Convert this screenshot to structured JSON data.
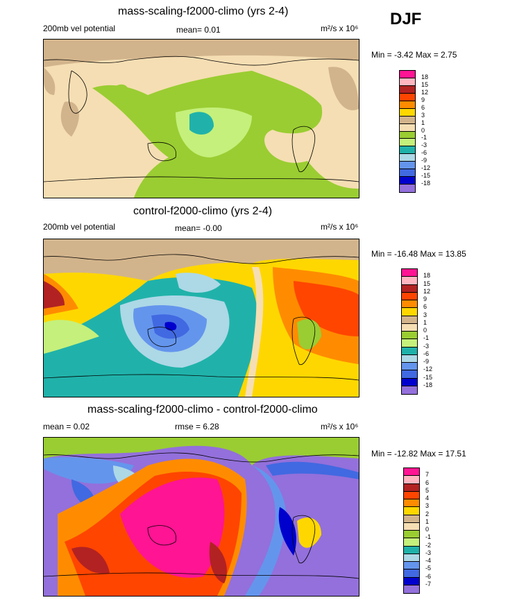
{
  "season": "DJF",
  "units": "m²/s x 10⁶",
  "panels": [
    {
      "title": "mass-scaling-f2000-climo (yrs 2-4)",
      "left_label": "200mb vel potential",
      "stat1": "mean=   0.01",
      "stat2": "",
      "minmax": "Min = -3.42 Max =  2.75",
      "levels": [
        "18",
        "15",
        "12",
        "9",
        "6",
        "3",
        "1",
        "0",
        "-1",
        "-3",
        "-6",
        "-9",
        "-12",
        "-15",
        "-18"
      ]
    },
    {
      "title": "control-f2000-climo (yrs 2-4)",
      "left_label": "200mb vel potential",
      "stat1": "mean=  -0.00",
      "stat2": "",
      "minmax": "Min = -16.48 Max = 13.85",
      "levels": [
        "18",
        "15",
        "12",
        "9",
        "6",
        "3",
        "1",
        "0",
        "-1",
        "-3",
        "-6",
        "-9",
        "-12",
        "-15",
        "-18"
      ]
    },
    {
      "title": "mass-scaling-f2000-climo - control-f2000-climo",
      "left_label": "mean =   0.02",
      "stat1": "rmse =   6.28",
      "stat2": "",
      "minmax": "Min = -12.82 Max = 17.51",
      "levels": [
        "7",
        "6",
        "5",
        "4",
        "3",
        "2",
        "1",
        "0",
        "-1",
        "-2",
        "-3",
        "-4",
        "-5",
        "-6",
        "-7"
      ]
    }
  ],
  "colors": [
    "#ff1493",
    "#ffb6c1",
    "#b22222",
    "#ff4500",
    "#ff8c00",
    "#ffd700",
    "#d2b48c",
    "#f5deb3",
    "#9acd32",
    "#c5f07b",
    "#20b2aa",
    "#add8e6",
    "#6495ed",
    "#4169e1",
    "#0000cd",
    "#9370db"
  ],
  "chart_data": [
    {
      "type": "heatmap",
      "title": "mass-scaling-f2000-climo (yrs 2-4)",
      "field": "200mb vel potential",
      "mean": 0.01,
      "min": -3.42,
      "max": 2.75,
      "levels": [
        18,
        15,
        12,
        9,
        6,
        3,
        1,
        0,
        -1,
        -3,
        -6,
        -9,
        -12,
        -15,
        -18
      ]
    },
    {
      "type": "heatmap",
      "title": "control-f2000-climo (yrs 2-4)",
      "field": "200mb vel potential",
      "mean": -0.0,
      "min": -16.48,
      "max": 13.85,
      "levels": [
        18,
        15,
        12,
        9,
        6,
        3,
        1,
        0,
        -1,
        -3,
        -6,
        -9,
        -12,
        -15,
        -18
      ]
    },
    {
      "type": "heatmap",
      "title": "mass-scaling-f2000-climo - control-f2000-climo",
      "mean": 0.02,
      "rmse": 6.28,
      "min": -12.82,
      "max": 17.51,
      "levels": [
        7,
        6,
        5,
        4,
        3,
        2,
        1,
        0,
        -1,
        -2,
        -3,
        -4,
        -5,
        -6,
        -7
      ]
    }
  ]
}
